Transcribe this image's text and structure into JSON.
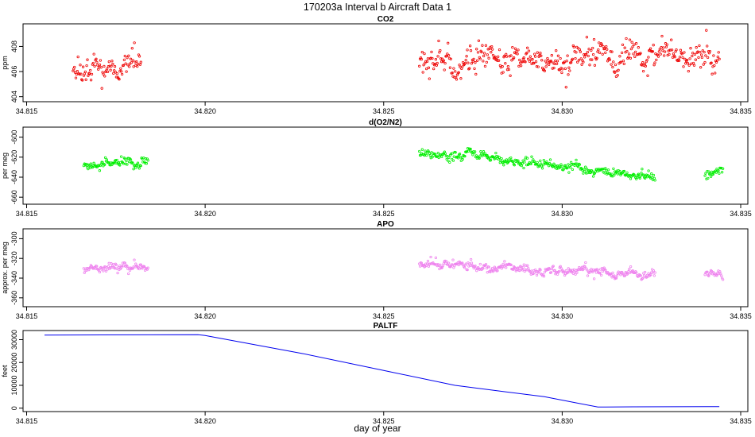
{
  "figure": {
    "title": "170203a   Interval b Aircraft Data 1",
    "xlabel": "day of year"
  },
  "chart_data": [
    {
      "type": "scatter",
      "title": "CO2",
      "ylabel": "ppm",
      "xlim": [
        34.8149,
        34.8352
      ],
      "ylim": [
        403.6,
        409.8
      ],
      "xticks": [
        34.815,
        34.82,
        34.825,
        34.83,
        34.835
      ],
      "xtick_labels": [
        "34.815",
        "34.820",
        "34.825",
        "34.830",
        "34.835"
      ],
      "yticks": [
        404,
        406,
        408
      ],
      "ytick_labels": [
        "404",
        "406",
        "408"
      ],
      "color": "#ee0000",
      "segments": [
        {
          "x": [
            34.8163,
            34.8182
          ],
          "base": [
            406.5,
            406.9
          ],
          "noise": 0.9
        },
        {
          "x": [
            34.826,
            34.8344
          ],
          "base": [
            406.6,
            407.4
          ],
          "noise": 1.0
        }
      ],
      "series": []
    },
    {
      "type": "scatter",
      "title": "d(O2/N2)",
      "ylabel": "per meg",
      "xlim": [
        34.8149,
        34.8352
      ],
      "ylim": [
        -667,
        -590
      ],
      "xticks": [
        34.815,
        34.82,
        34.825,
        34.83,
        34.835
      ],
      "xtick_labels": [
        "34.815",
        "34.820",
        "34.825",
        "34.830",
        "34.835"
      ],
      "yticks": [
        -600,
        -620,
        -640,
        -660
      ],
      "ytick_labels": [
        "-600",
        "-620",
        "-640",
        "-660"
      ],
      "color": "#00ee00",
      "segments": [
        {
          "x": [
            34.8166,
            34.8184
          ],
          "base": [
            -627,
            -625
          ],
          "noise": 4
        },
        {
          "x": [
            34.826,
            34.8279
          ],
          "base": [
            -617,
            -618
          ],
          "noise": 4
        },
        {
          "x": [
            34.8279,
            34.8326
          ],
          "base": [
            -622,
            -640
          ],
          "noise": 4
        },
        {
          "x": [
            34.834,
            34.8345
          ],
          "base": [
            -638,
            -638
          ],
          "noise": 5
        }
      ],
      "series": []
    },
    {
      "type": "scatter",
      "title": "APO",
      "ylabel": "approx. per meg",
      "xlim": [
        34.8149,
        34.8352
      ],
      "ylim": [
        -369,
        -290
      ],
      "xticks": [
        34.815,
        34.82,
        34.825,
        34.83,
        34.835
      ],
      "xtick_labels": [
        "34.815",
        "34.820",
        "34.825",
        "34.830",
        "34.835"
      ],
      "yticks": [
        -300,
        -320,
        -340,
        -360
      ],
      "ytick_labels": [
        "-300",
        "-320",
        "-340",
        "-360"
      ],
      "color": "#ee82ee",
      "segments": [
        {
          "x": [
            34.8166,
            34.8184
          ],
          "base": [
            -330,
            -328
          ],
          "noise": 4
        },
        {
          "x": [
            34.826,
            34.8326
          ],
          "base": [
            -326,
            -337
          ],
          "noise": 4
        },
        {
          "x": [
            34.834,
            34.8345
          ],
          "base": [
            -337,
            -337
          ],
          "noise": 4
        }
      ],
      "series": []
    },
    {
      "type": "line",
      "title": "PALTF",
      "ylabel": "feet",
      "xlim": [
        34.8149,
        34.8352
      ],
      "ylim": [
        -1500,
        34000
      ],
      "xticks": [
        34.815,
        34.82,
        34.825,
        34.83,
        34.835
      ],
      "xtick_labels": [
        "34.815",
        "34.820",
        "34.825",
        "34.830",
        "34.835"
      ],
      "yticks": [
        0,
        10000,
        20000,
        30000
      ],
      "ytick_labels": [
        "0",
        "10000",
        "20000",
        "30000"
      ],
      "color": "#0000ee",
      "series": [
        {
          "x": [
            34.8155,
            34.8198,
            34.82,
            34.8227,
            34.825,
            34.827,
            34.8295,
            34.831,
            34.832,
            34.8344
          ],
          "y": [
            32000,
            32200,
            31800,
            24000,
            16500,
            10000,
            5000,
            500,
            600,
            700
          ]
        }
      ]
    }
  ]
}
